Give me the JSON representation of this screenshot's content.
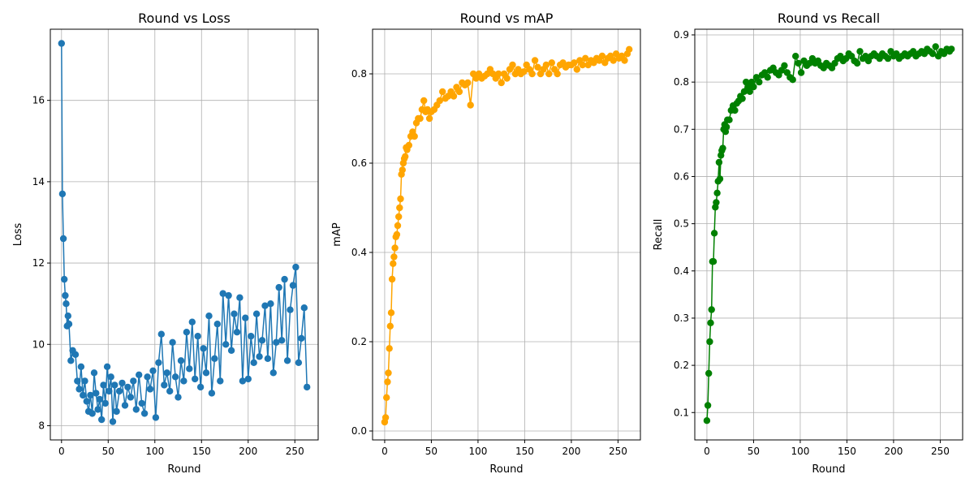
{
  "chart_data": [
    {
      "type": "line",
      "title": "Round vs Loss",
      "xlabel": "Round",
      "ylabel": "Loss",
      "xlim": [
        -12,
        275
      ],
      "ylim": [
        7.65,
        17.75
      ],
      "xticks": [
        0,
        50,
        100,
        150,
        200,
        250
      ],
      "yticks": [
        8,
        10,
        12,
        14,
        16
      ],
      "ytick_labels": [
        "8",
        "10",
        "12",
        "14",
        "16"
      ],
      "grid": true,
      "color": "#1f77b4",
      "marker": "circle",
      "series": [
        {
          "x": [
            0,
            1,
            2,
            3,
            4,
            5,
            6,
            7,
            8,
            10,
            12,
            15,
            17,
            19,
            21,
            23,
            25,
            27,
            29,
            31,
            33,
            35,
            37,
            39,
            41,
            43,
            45,
            47,
            49,
            51,
            53,
            55,
            57,
            59,
            62,
            65,
            68,
            71,
            74,
            77,
            80,
            83,
            86,
            89,
            92,
            95,
            98,
            101,
            104,
            107,
            110,
            113,
            116,
            119,
            122,
            125,
            128,
            131,
            134,
            137,
            140,
            143,
            146,
            149,
            152,
            155,
            158,
            161,
            164,
            167,
            170,
            173,
            176,
            179,
            182,
            185,
            188,
            191,
            194,
            197,
            200,
            203,
            206,
            209,
            212,
            215,
            218,
            221,
            224,
            227,
            230,
            233,
            236,
            239,
            242,
            245,
            248,
            251,
            254,
            257,
            260,
            263
          ],
          "y": [
            17.4,
            13.7,
            12.6,
            11.6,
            11.2,
            11.0,
            10.45,
            10.7,
            10.5,
            9.6,
            9.85,
            9.75,
            9.1,
            8.9,
            9.45,
            8.75,
            9.1,
            8.6,
            8.35,
            8.75,
            8.3,
            9.3,
            8.8,
            8.4,
            8.65,
            8.15,
            9.0,
            8.55,
            9.45,
            8.85,
            9.2,
            8.1,
            9.0,
            8.35,
            8.85,
            9.05,
            8.5,
            8.95,
            8.7,
            9.1,
            8.4,
            9.25,
            8.55,
            8.3,
            9.2,
            8.9,
            9.35,
            8.2,
            9.55,
            10.25,
            9.0,
            9.3,
            8.85,
            10.05,
            9.2,
            8.7,
            9.6,
            9.1,
            10.3,
            9.4,
            10.55,
            9.15,
            10.2,
            8.95,
            9.9,
            9.3,
            10.7,
            8.8,
            9.65,
            10.5,
            9.1,
            11.25,
            10.0,
            11.2,
            9.85,
            10.75,
            10.3,
            11.15,
            9.1,
            10.65,
            9.15,
            10.2,
            9.55,
            10.75,
            9.7,
            10.1,
            10.95,
            9.65,
            11.0,
            9.3,
            10.05,
            11.4,
            10.1,
            11.6,
            9.6,
            10.85,
            11.45,
            11.9,
            9.55,
            10.15,
            10.9,
            8.95
          ]
        }
      ]
    },
    {
      "type": "line",
      "title": "Round vs mAP",
      "xlabel": "Round",
      "ylabel": "mAP",
      "xlim": [
        -13,
        274
      ],
      "ylim": [
        -0.02,
        0.9
      ],
      "xticks": [
        0,
        50,
        100,
        150,
        200,
        250
      ],
      "yticks": [
        0.0,
        0.2,
        0.4,
        0.6,
        0.8
      ],
      "ytick_labels": [
        "0.0",
        "0.2",
        "0.4",
        "0.6",
        "0.8"
      ],
      "grid": true,
      "color": "#ffa500",
      "marker": "circle",
      "series": [
        {
          "x": [
            0,
            1,
            2,
            3,
            4,
            5,
            6,
            7,
            8,
            9,
            10,
            11,
            12,
            13,
            14,
            15,
            16,
            17,
            18,
            19,
            20,
            21,
            22,
            23,
            24,
            26,
            28,
            30,
            32,
            34,
            36,
            38,
            40,
            42,
            44,
            46,
            48,
            50,
            53,
            56,
            59,
            62,
            65,
            68,
            71,
            74,
            77,
            80,
            83,
            86,
            89,
            92,
            95,
            98,
            101,
            104,
            107,
            110,
            113,
            116,
            119,
            122,
            125,
            128,
            131,
            134,
            137,
            140,
            143,
            146,
            149,
            152,
            155,
            158,
            161,
            164,
            167,
            170,
            173,
            176,
            179,
            182,
            185,
            188,
            191,
            194,
            197,
            200,
            203,
            206,
            209,
            212,
            215,
            218,
            221,
            224,
            227,
            230,
            233,
            236,
            239,
            242,
            245,
            248,
            251,
            254,
            257,
            260,
            262
          ],
          "y": [
            0.02,
            0.03,
            0.075,
            0.11,
            0.13,
            0.185,
            0.235,
            0.265,
            0.34,
            0.375,
            0.39,
            0.41,
            0.435,
            0.44,
            0.46,
            0.48,
            0.5,
            0.52,
            0.575,
            0.585,
            0.6,
            0.61,
            0.615,
            0.635,
            0.63,
            0.64,
            0.66,
            0.67,
            0.66,
            0.69,
            0.7,
            0.7,
            0.72,
            0.74,
            0.715,
            0.72,
            0.7,
            0.715,
            0.72,
            0.73,
            0.74,
            0.76,
            0.745,
            0.75,
            0.76,
            0.75,
            0.77,
            0.76,
            0.78,
            0.775,
            0.78,
            0.73,
            0.8,
            0.79,
            0.8,
            0.79,
            0.795,
            0.8,
            0.81,
            0.8,
            0.79,
            0.8,
            0.78,
            0.8,
            0.79,
            0.81,
            0.82,
            0.8,
            0.81,
            0.8,
            0.805,
            0.82,
            0.81,
            0.8,
            0.83,
            0.815,
            0.8,
            0.81,
            0.82,
            0.8,
            0.825,
            0.81,
            0.8,
            0.82,
            0.825,
            0.815,
            0.82,
            0.82,
            0.825,
            0.81,
            0.83,
            0.82,
            0.835,
            0.82,
            0.83,
            0.825,
            0.835,
            0.83,
            0.84,
            0.825,
            0.835,
            0.84,
            0.83,
            0.845,
            0.835,
            0.84,
            0.83,
            0.845,
            0.855
          ]
        }
      ]
    },
    {
      "type": "line",
      "title": "Round vs Recall",
      "xlabel": "Round",
      "ylabel": "Recall",
      "xlim": [
        -13,
        274
      ],
      "ylim": [
        0.042,
        0.912
      ],
      "xticks": [
        0,
        50,
        100,
        150,
        200,
        250
      ],
      "yticks": [
        0.1,
        0.2,
        0.3,
        0.4,
        0.5,
        0.6,
        0.7,
        0.8,
        0.9
      ],
      "ytick_labels": [
        "0.1",
        "0.2",
        "0.3",
        "0.4",
        "0.5",
        "0.6",
        "0.7",
        "0.8",
        "0.9"
      ],
      "grid": true,
      "color": "#008000",
      "marker": "circle",
      "series": [
        {
          "x": [
            0,
            1,
            2,
            3,
            4,
            5,
            6,
            7,
            8,
            9,
            10,
            11,
            12,
            13,
            14,
            15,
            16,
            17,
            18,
            19,
            20,
            21,
            22,
            24,
            26,
            28,
            30,
            32,
            34,
            36,
            38,
            40,
            42,
            44,
            46,
            48,
            50,
            53,
            56,
            59,
            62,
            65,
            68,
            71,
            74,
            77,
            80,
            83,
            86,
            89,
            92,
            95,
            98,
            101,
            104,
            107,
            110,
            113,
            116,
            119,
            122,
            125,
            128,
            131,
            134,
            137,
            140,
            143,
            146,
            149,
            152,
            155,
            158,
            161,
            164,
            167,
            170,
            173,
            176,
            179,
            182,
            185,
            188,
            191,
            194,
            197,
            200,
            203,
            206,
            209,
            212,
            215,
            218,
            221,
            224,
            227,
            230,
            233,
            236,
            239,
            242,
            245,
            248,
            251,
            254,
            257,
            260,
            262
          ],
          "y": [
            0.083,
            0.115,
            0.183,
            0.25,
            0.29,
            0.318,
            0.42,
            0.42,
            0.48,
            0.535,
            0.545,
            0.565,
            0.59,
            0.63,
            0.595,
            0.645,
            0.655,
            0.66,
            0.7,
            0.71,
            0.695,
            0.705,
            0.72,
            0.72,
            0.74,
            0.75,
            0.74,
            0.755,
            0.76,
            0.77,
            0.765,
            0.78,
            0.8,
            0.79,
            0.78,
            0.8,
            0.79,
            0.81,
            0.8,
            0.815,
            0.82,
            0.81,
            0.825,
            0.83,
            0.82,
            0.815,
            0.825,
            0.835,
            0.82,
            0.81,
            0.805,
            0.855,
            0.84,
            0.82,
            0.845,
            0.835,
            0.84,
            0.85,
            0.84,
            0.845,
            0.835,
            0.83,
            0.84,
            0.835,
            0.83,
            0.84,
            0.85,
            0.855,
            0.845,
            0.85,
            0.86,
            0.855,
            0.845,
            0.84,
            0.865,
            0.85,
            0.855,
            0.845,
            0.855,
            0.86,
            0.855,
            0.85,
            0.86,
            0.855,
            0.85,
            0.865,
            0.855,
            0.86,
            0.85,
            0.855,
            0.86,
            0.855,
            0.86,
            0.865,
            0.855,
            0.86,
            0.865,
            0.86,
            0.87,
            0.865,
            0.86,
            0.875,
            0.855,
            0.865,
            0.86,
            0.87,
            0.865,
            0.87
          ]
        }
      ]
    }
  ]
}
